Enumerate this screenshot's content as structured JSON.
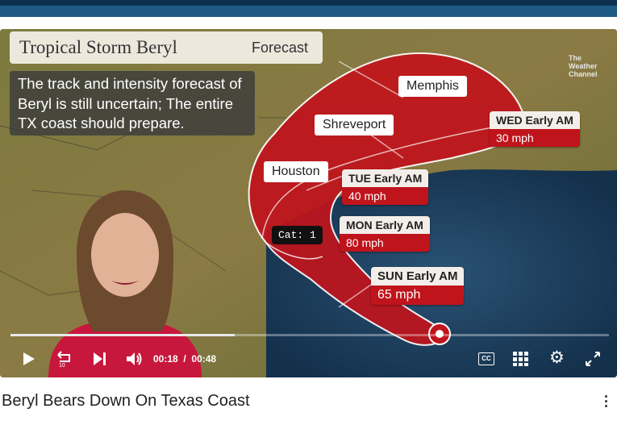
{
  "video": {
    "title_card": {
      "title": "Tropical Storm Beryl",
      "tag": "Forecast"
    },
    "note": "The track and intensity forecast of Beryl is still uncertain; The entire TX coast should prepare.",
    "channel_logo": [
      "The",
      "Weather",
      "Channel"
    ],
    "cities": [
      "Memphis",
      "Shreveport",
      "Houston"
    ],
    "forecast_labels": [
      {
        "time": "WED Early AM",
        "speed": "30 mph"
      },
      {
        "time": "TUE Early AM",
        "speed": "40 mph"
      },
      {
        "time": "MON Early AM",
        "speed": "80 mph"
      },
      {
        "time": "SUN Early AM",
        "speed": "65 mph"
      }
    ],
    "category_label": "Cat: 1",
    "colors": {
      "cone": "#c0141c",
      "gulf": "#1f3e5e",
      "land": "#6d7a3c"
    }
  },
  "player": {
    "current_time": "00:18",
    "separator": "/",
    "duration": "00:48",
    "progress_fraction": 0.375,
    "icons": [
      "play-icon",
      "replay-10-icon",
      "next-icon",
      "volume-icon",
      "captions-icon",
      "grid-icon",
      "settings-icon",
      "fullscreen-icon"
    ],
    "cc_label": "CC"
  },
  "page": {
    "video_title": "Beryl Bears Down On Texas Coast"
  }
}
